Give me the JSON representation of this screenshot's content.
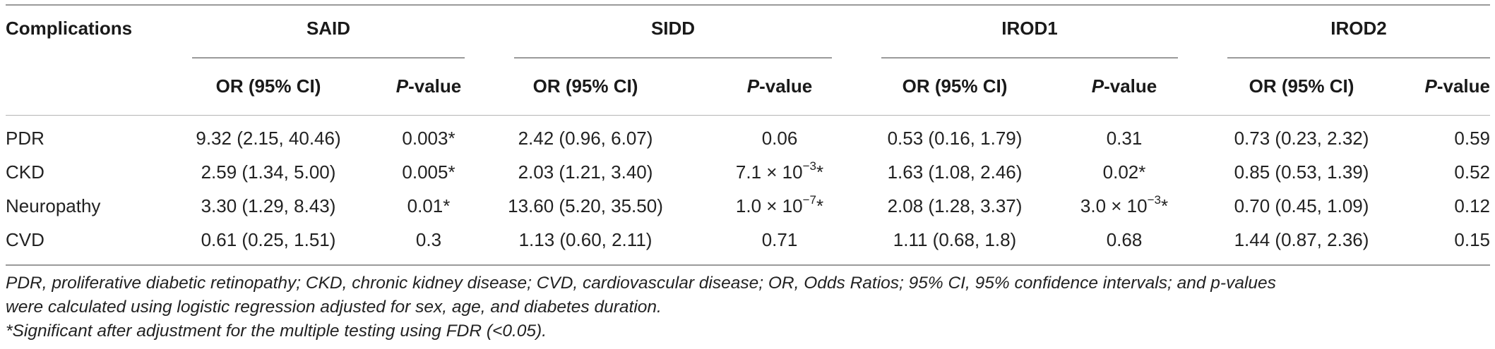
{
  "table": {
    "header": {
      "row_label": "Complications",
      "groups": [
        "SAID",
        "SIDD",
        "IROD1",
        "IROD2"
      ],
      "sub_or": "OR (95% CI)",
      "sub_p_italic": "P",
      "sub_p_rest": "-value"
    },
    "rows": [
      {
        "label": "PDR",
        "cells": [
          {
            "or": "9.32 (2.15, 40.46)",
            "p": "0.003*"
          },
          {
            "or": "2.42 (0.96, 6.07)",
            "p": "0.06"
          },
          {
            "or": "0.53 (0.16, 1.79)",
            "p": "0.31"
          },
          {
            "or": "0.73 (0.23, 2.32)",
            "p": "0.59"
          }
        ]
      },
      {
        "label": "CKD",
        "cells": [
          {
            "or": "2.59 (1.34, 5.00)",
            "p": "0.005*"
          },
          {
            "or": "2.03 (1.21, 3.40)",
            "p_base": "7.1 × 10",
            "p_exp": "−3",
            "p_tail": "*"
          },
          {
            "or": "1.63 (1.08, 2.46)",
            "p": "0.02*"
          },
          {
            "or": "0.85 (0.53, 1.39)",
            "p": "0.52"
          }
        ]
      },
      {
        "label": "Neuropathy",
        "cells": [
          {
            "or": "3.30 (1.29, 8.43)",
            "p": "0.01*"
          },
          {
            "or": "13.60 (5.20, 35.50)",
            "p_base": "1.0 × 10",
            "p_exp": "−7",
            "p_tail": "*"
          },
          {
            "or": "2.08 (1.28, 3.37)",
            "p_base": "3.0 × 10",
            "p_exp": "−3",
            "p_tail": "*"
          },
          {
            "or": "0.70 (0.45, 1.09)",
            "p": "0.12"
          }
        ]
      },
      {
        "label": "CVD",
        "cells": [
          {
            "or": "0.61 (0.25, 1.51)",
            "p": "0.3"
          },
          {
            "or": "1.13 (0.60, 2.11)",
            "p": "0.71"
          },
          {
            "or": "1.11 (0.68, 1.8)",
            "p": "0.68"
          },
          {
            "or": "1.44 (0.87, 2.36)",
            "p": "0.15"
          }
        ]
      }
    ]
  },
  "footnotes": {
    "line1": "PDR, proliferative diabetic retinopathy; CKD, chronic kidney disease; CVD, cardiovascular disease; OR, Odds Ratios; 95% CI, 95% confidence intervals; and p-values",
    "line2": "were calculated using logistic regression adjusted for sex, age, and diabetes duration.",
    "line3": "*Significant after adjustment for the multiple testing using FDR (<0.05)."
  }
}
